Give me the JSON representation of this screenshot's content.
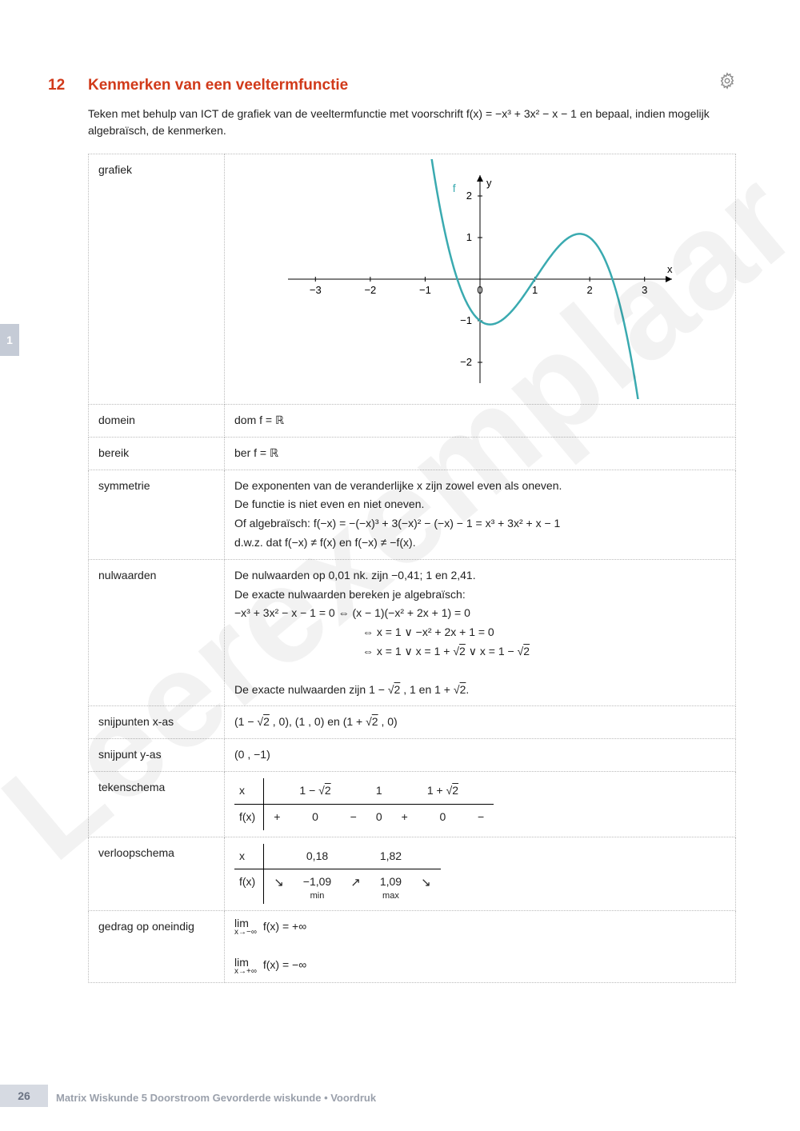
{
  "watermark": "Leerexemplaar",
  "section": {
    "number": "12",
    "title": "Kenmerken van een veeltermfunctie"
  },
  "intro": "Teken met behulp van ICT de grafiek van de veeltermfunctie met voorschrift f(x) = −x³ + 3x² − x − 1 en bepaal, indien mogelijk algebraïsch, de kenmerken.",
  "side_tab": "1",
  "rows": {
    "grafiek": {
      "label": "grafiek"
    },
    "domein": {
      "label": "domein",
      "value": "dom f = ℝ"
    },
    "bereik": {
      "label": "bereik",
      "value": "ber f = ℝ"
    },
    "symmetrie": {
      "label": "symmetrie",
      "line1": "De exponenten van de veranderlijke x zijn zowel even als oneven.",
      "line2": "De functie is niet even en niet oneven.",
      "line3": "Of algebraïsch: f(−x) = −(−x)³ + 3(−x)² − (−x) − 1 = x³ + 3x² + x − 1",
      "line4": "d.w.z. dat f(−x) ≠ f(x) en f(−x) ≠ −f(x)."
    },
    "nulwaarden": {
      "label": "nulwaarden",
      "l1": "De nulwaarden op 0,01 nk. zijn −0,41; 1 en 2,41.",
      "l2": "De exacte nulwaarden bereken je algebraïsch:",
      "l3": "−x³ + 3x² − x − 1 = 0 ⇔ (x − 1)(−x² + 2x + 1) = 0",
      "l4": "⇔ x = 1 ∨ −x² + 2x + 1 = 0",
      "l5_prefix": "⇔ x = 1 ∨ x = 1 + ",
      "l5_mid": " ∨ x = 1 − ",
      "l6_prefix": "De exacte nulwaarden zijn 1 − ",
      "l6_mid": " , 1 en 1 + ",
      "l6_suffix": "."
    },
    "snijpunten_x": {
      "label": "snijpunten x-as",
      "p1": "(1 − ",
      "p2": " , 0), (1 , 0) en (1 + ",
      "p3": " , 0)"
    },
    "snijpunt_y": {
      "label": "snijpunt y-as",
      "value": "(0 , −1)"
    },
    "tekenschema": {
      "label": "tekenschema"
    },
    "verloopschema": {
      "label": "verloopschema"
    },
    "gedrag": {
      "label": "gedrag op oneindig",
      "lim1_top": "lim",
      "lim1_under": "x→−∞",
      "lim1_rhs": " f(x) = +∞",
      "lim2_top": "lim",
      "lim2_under": "x→+∞",
      "lim2_rhs": " f(x) = −∞"
    }
  },
  "sqrt2": "2",
  "sign_table": {
    "h1": "x",
    "v1": "1 − ",
    "v2": "1",
    "v3": "1 + ",
    "r2a": "f(x)",
    "cells": [
      "+",
      "0",
      "−",
      "0",
      "+",
      "0",
      "−"
    ]
  },
  "var_table": {
    "h1": "x",
    "v1": "0,18",
    "v2": "1,82",
    "r2a": "f(x)",
    "a1": "↘",
    "c1": "−1,09",
    "m1": "min",
    "a2": "↗",
    "c2": "1,09",
    "m2": "max",
    "a3": "↘"
  },
  "chart": {
    "xmin": -3.5,
    "xmax": 3.5,
    "ymin": -2.5,
    "ymax": 2.5,
    "xticks": [
      -3,
      -2,
      -1,
      0,
      1,
      2,
      3
    ],
    "yticks": [
      -2,
      -1,
      1,
      2
    ],
    "xlabel": "x",
    "ylabel": "y",
    "flabel": "f",
    "curve_color": "#3aaab0",
    "axis_color": "#000000"
  },
  "footer": {
    "page": "26",
    "text": "Matrix Wiskunde 5 Doorstroom Gevorderde wiskunde • Voordruk"
  }
}
